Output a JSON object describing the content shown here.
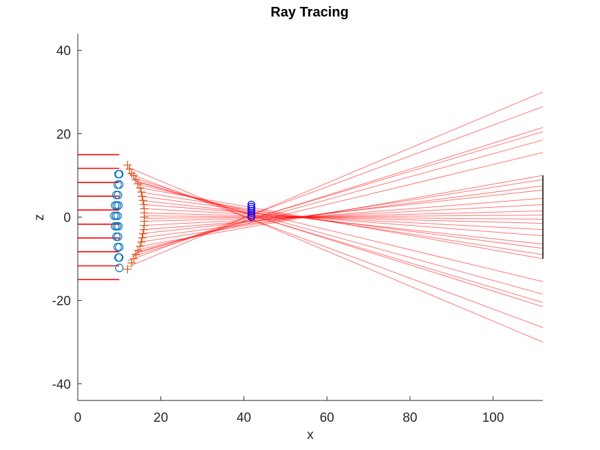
{
  "chart_data": {
    "type": "line",
    "title": "Ray Tracing",
    "xlabel": "x",
    "ylabel": "z",
    "xlim": [
      0,
      112
    ],
    "ylim": [
      -44,
      44
    ],
    "xticks": [
      "0",
      "20",
      "40",
      "60",
      "80",
      "100"
    ],
    "yticks": [
      "-40",
      "-20",
      "0",
      "20",
      "40"
    ],
    "grid": false,
    "legend": "none",
    "colors": {
      "rays": "#ff0000",
      "lens_circles": "#0072bd",
      "lens_crosses": "#d95319",
      "focus_circles": "#0000ff",
      "detector": "#000000",
      "axes": "#262626"
    },
    "incoming_rays": [
      {
        "x": [
          0,
          10
        ],
        "z": [
          15,
          15
        ]
      },
      {
        "x": [
          0,
          10
        ],
        "z": [
          11.7,
          11.7
        ]
      },
      {
        "x": [
          0,
          10
        ],
        "z": [
          8.3,
          8.3
        ]
      },
      {
        "x": [
          0,
          10
        ],
        "z": [
          5,
          5
        ]
      },
      {
        "x": [
          0,
          10
        ],
        "z": [
          1.7,
          1.7
        ]
      },
      {
        "x": [
          0,
          10
        ],
        "z": [
          -1.7,
          -1.7
        ]
      },
      {
        "x": [
          0,
          10
        ],
        "z": [
          -5,
          -5
        ]
      },
      {
        "x": [
          0,
          10
        ],
        "z": [
          -8.3,
          -8.3
        ]
      },
      {
        "x": [
          0,
          10
        ],
        "z": [
          -11.7,
          -11.7
        ]
      },
      {
        "x": [
          0,
          10
        ],
        "z": [
          -15,
          -15
        ]
      }
    ],
    "refracted_rays": [
      {
        "x": [
          12,
          112
        ],
        "z": [
          12.0,
          -30.0
        ]
      },
      {
        "x": [
          12,
          112
        ],
        "z": [
          10.5,
          -26.5
        ]
      },
      {
        "x": [
          13,
          112
        ],
        "z": [
          9.5,
          -21.5
        ]
      },
      {
        "x": [
          13,
          112
        ],
        "z": [
          9.0,
          -20.5
        ]
      },
      {
        "x": [
          14,
          112
        ],
        "z": [
          8.5,
          -18.5
        ]
      },
      {
        "x": [
          14,
          112
        ],
        "z": [
          8.0,
          -15.5
        ]
      },
      {
        "x": [
          15,
          112
        ],
        "z": [
          7.0,
          -10.0
        ]
      },
      {
        "x": [
          15,
          112
        ],
        "z": [
          6.0,
          -9.0
        ]
      },
      {
        "x": [
          15,
          112
        ],
        "z": [
          5.0,
          -7.5
        ]
      },
      {
        "x": [
          15,
          112
        ],
        "z": [
          4.0,
          -6.5
        ]
      },
      {
        "x": [
          16,
          112
        ],
        "z": [
          3.0,
          -4.5
        ]
      },
      {
        "x": [
          16,
          112
        ],
        "z": [
          2.0,
          -3.0
        ]
      },
      {
        "x": [
          16,
          112
        ],
        "z": [
          1.0,
          -1.5
        ]
      },
      {
        "x": [
          16,
          112
        ],
        "z": [
          0.3,
          -0.5
        ]
      },
      {
        "x": [
          16,
          112
        ],
        "z": [
          -0.3,
          0.5
        ]
      },
      {
        "x": [
          16,
          112
        ],
        "z": [
          -1.0,
          1.5
        ]
      },
      {
        "x": [
          16,
          112
        ],
        "z": [
          -2.0,
          3.0
        ]
      },
      {
        "x": [
          16,
          112
        ],
        "z": [
          -3.0,
          4.5
        ]
      },
      {
        "x": [
          15,
          112
        ],
        "z": [
          -4.0,
          6.5
        ]
      },
      {
        "x": [
          15,
          112
        ],
        "z": [
          -5.0,
          7.5
        ]
      },
      {
        "x": [
          15,
          112
        ],
        "z": [
          -6.0,
          9.0
        ]
      },
      {
        "x": [
          15,
          112
        ],
        "z": [
          -7.0,
          10.0
        ]
      },
      {
        "x": [
          14,
          112
        ],
        "z": [
          -8.0,
          15.5
        ]
      },
      {
        "x": [
          14,
          112
        ],
        "z": [
          -8.5,
          18.5
        ]
      },
      {
        "x": [
          13,
          112
        ],
        "z": [
          -9.0,
          20.5
        ]
      },
      {
        "x": [
          13,
          112
        ],
        "z": [
          -9.5,
          21.5
        ]
      },
      {
        "x": [
          12,
          112
        ],
        "z": [
          -10.5,
          26.5
        ]
      },
      {
        "x": [
          12,
          112
        ],
        "z": [
          -12.0,
          30.0
        ]
      }
    ],
    "lens_front_points": [
      {
        "x": 10,
        "z": 10.3
      },
      {
        "x": 9.8,
        "z": 10.3
      },
      {
        "x": 9.6,
        "z": 7.8
      },
      {
        "x": 10,
        "z": 7.8
      },
      {
        "x": 9.3,
        "z": 5.3
      },
      {
        "x": 9.7,
        "z": 5.3
      },
      {
        "x": 9.0,
        "z": 2.8
      },
      {
        "x": 9.4,
        "z": 2.8
      },
      {
        "x": 9.8,
        "z": 2.8
      },
      {
        "x": 8.8,
        "z": 0.3
      },
      {
        "x": 9.2,
        "z": 0.3
      },
      {
        "x": 9.6,
        "z": 0.3
      },
      {
        "x": 9.0,
        "z": -2.2
      },
      {
        "x": 9.4,
        "z": -2.2
      },
      {
        "x": 9.8,
        "z": -2.2
      },
      {
        "x": 9.3,
        "z": -4.7
      },
      {
        "x": 9.7,
        "z": -4.7
      },
      {
        "x": 9.6,
        "z": -7.2
      },
      {
        "x": 10,
        "z": -7.2
      },
      {
        "x": 9.8,
        "z": -9.7
      },
      {
        "x": 10,
        "z": -9.7
      },
      {
        "x": 10,
        "z": -12.2
      }
    ],
    "lens_back_points": [
      {
        "x": 12,
        "z": 12.5
      },
      {
        "x": 12.5,
        "z": 11.5
      },
      {
        "x": 13,
        "z": 10.5
      },
      {
        "x": 13.5,
        "z": 10.0
      },
      {
        "x": 14,
        "z": 9.0
      },
      {
        "x": 14.5,
        "z": 8.0
      },
      {
        "x": 15,
        "z": 7.0
      },
      {
        "x": 15.3,
        "z": 6.0
      },
      {
        "x": 15.5,
        "z": 5.0
      },
      {
        "x": 15.7,
        "z": 4.0
      },
      {
        "x": 15.9,
        "z": 3.0
      },
      {
        "x": 16,
        "z": 2.0
      },
      {
        "x": 16,
        "z": 1.0
      },
      {
        "x": 16,
        "z": 0.0
      },
      {
        "x": 16,
        "z": -1.0
      },
      {
        "x": 16,
        "z": -2.0
      },
      {
        "x": 15.9,
        "z": -3.0
      },
      {
        "x": 15.7,
        "z": -4.0
      },
      {
        "x": 15.5,
        "z": -5.0
      },
      {
        "x": 15.3,
        "z": -6.0
      },
      {
        "x": 15,
        "z": -7.0
      },
      {
        "x": 14.5,
        "z": -8.0
      },
      {
        "x": 14,
        "z": -9.0
      },
      {
        "x": 13.5,
        "z": -10.0
      },
      {
        "x": 13,
        "z": -11.0
      },
      {
        "x": 12,
        "z": -12.5
      }
    ],
    "focus_points": [
      {
        "x": 41.8,
        "z": 3.0
      },
      {
        "x": 41.8,
        "z": 2.5
      },
      {
        "x": 41.8,
        "z": 2.0
      },
      {
        "x": 41.8,
        "z": 1.5
      },
      {
        "x": 41.8,
        "z": 1.0
      },
      {
        "x": 41.8,
        "z": 0.5
      },
      {
        "x": 41.8,
        "z": 0.0
      }
    ],
    "detector": {
      "x": 112,
      "z": [
        -10,
        10
      ]
    }
  }
}
